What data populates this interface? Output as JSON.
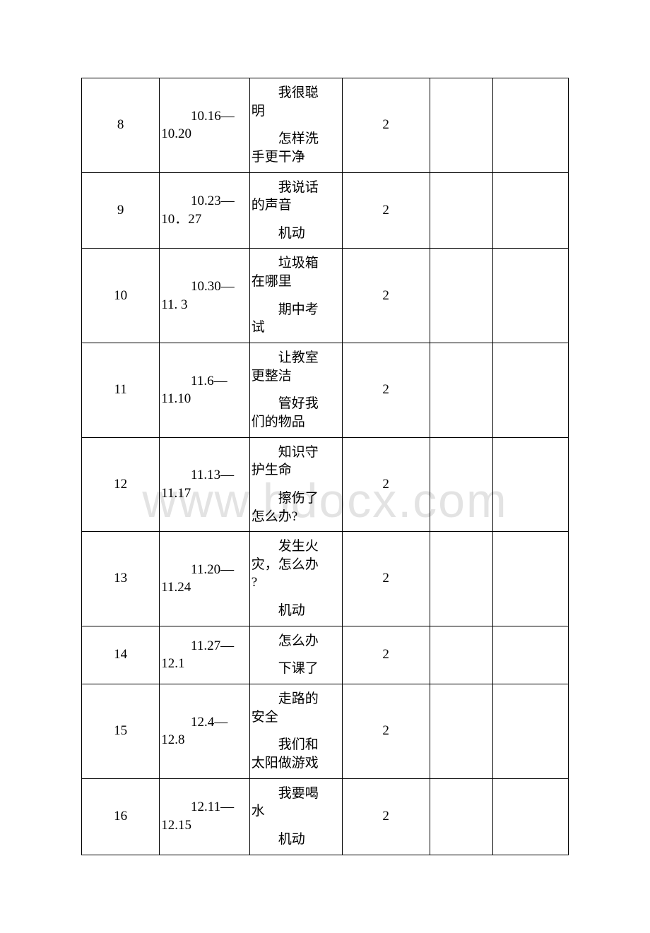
{
  "watermark": "www.bdocx.com",
  "table": {
    "border_color": "#000000",
    "background_color": "#ffffff",
    "text_color": "#000000",
    "font_size": 19,
    "columns": [
      {
        "width_pct": 16,
        "align": "center"
      },
      {
        "width_pct": 18.5,
        "align": "left"
      },
      {
        "width_pct": 19,
        "align": "left"
      },
      {
        "width_pct": 18,
        "align": "center"
      },
      {
        "width_pct": 13,
        "align": "left"
      },
      {
        "width_pct": 15.5,
        "align": "left"
      }
    ],
    "rows": [
      {
        "num": "8",
        "date_p1": "10.16—",
        "date_p2": "10.20",
        "topic_a1": "我很聪",
        "topic_a2": "明",
        "topic_b1": "怎样洗",
        "topic_b2": "手更干净",
        "hours": "2"
      },
      {
        "num": "9",
        "date_p1": "10.23—",
        "date_p2": "10．27",
        "topic_a1": "我说话",
        "topic_a2": "的声音",
        "topic_b1": "机动",
        "topic_b2": "",
        "hours": "2"
      },
      {
        "num": "10",
        "date_p1": "10.30—",
        "date_p2": "11. 3",
        "topic_a1": "垃圾箱",
        "topic_a2": "在哪里",
        "topic_b1": "期中考",
        "topic_b2": "试",
        "hours": "2"
      },
      {
        "num": "11",
        "date_p1": "11.6—",
        "date_p2": "11.10",
        "topic_a1": "让教室",
        "topic_a2": "更整洁",
        "topic_b1": "管好我",
        "topic_b2": "们的物品",
        "hours": "2"
      },
      {
        "num": "12",
        "date_p1": "11.13—",
        "date_p2": "11.17",
        "topic_a1": "知识守",
        "topic_a2": "护生命",
        "topic_b1": "擦伤了",
        "topic_b2": "怎么办?",
        "hours": "2"
      },
      {
        "num": "13",
        "date_p1": "11.20—",
        "date_p2": "11.24",
        "topic_a1": "发生火",
        "topic_a2": "灾，怎么办",
        "topic_a3": "?",
        "topic_b1": "机动",
        "topic_b2": "",
        "hours": "2"
      },
      {
        "num": "14",
        "date_p1": "11.27—",
        "date_p2": "12.1",
        "topic_a1": "怎么办",
        "topic_a2": "",
        "topic_b1": "下课了",
        "topic_b2": "",
        "hours": "2"
      },
      {
        "num": "15",
        "date_p1": "12.4—",
        "date_p2": "12.8",
        "topic_a1": "走路的",
        "topic_a2": "安全",
        "topic_b1": "我们和",
        "topic_b2": "太阳做游戏",
        "hours": "2"
      },
      {
        "num": "16",
        "date_p1": "12.11—",
        "date_p2": "12.15",
        "topic_a1": "我要喝",
        "topic_a2": "水",
        "topic_b1": "机动",
        "topic_b2": "",
        "hours": "2"
      }
    ]
  }
}
